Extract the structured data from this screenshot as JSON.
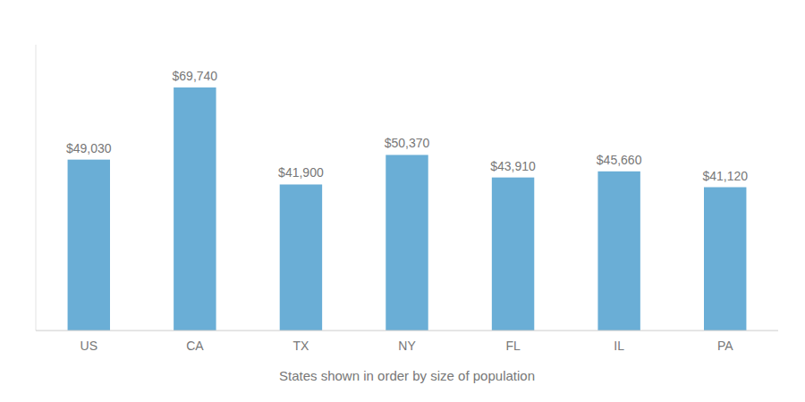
{
  "chart_data": {
    "type": "bar",
    "xlabel": "States shown in order by size of population",
    "categories": [
      "US",
      "CA",
      "TX",
      "NY",
      "FL",
      "IL",
      "PA"
    ],
    "values": [
      49030,
      69740,
      41900,
      50370,
      43910,
      45660,
      41120
    ],
    "value_labels": [
      "$49,030",
      "$69,740",
      "$41,900",
      "$50,370",
      "$43,910",
      "$45,660",
      "$41,120"
    ],
    "color": "#6aaed6",
    "ylim": [
      0,
      82000
    ],
    "data_labels": true,
    "tick_labels": "x",
    "grid": false
  }
}
